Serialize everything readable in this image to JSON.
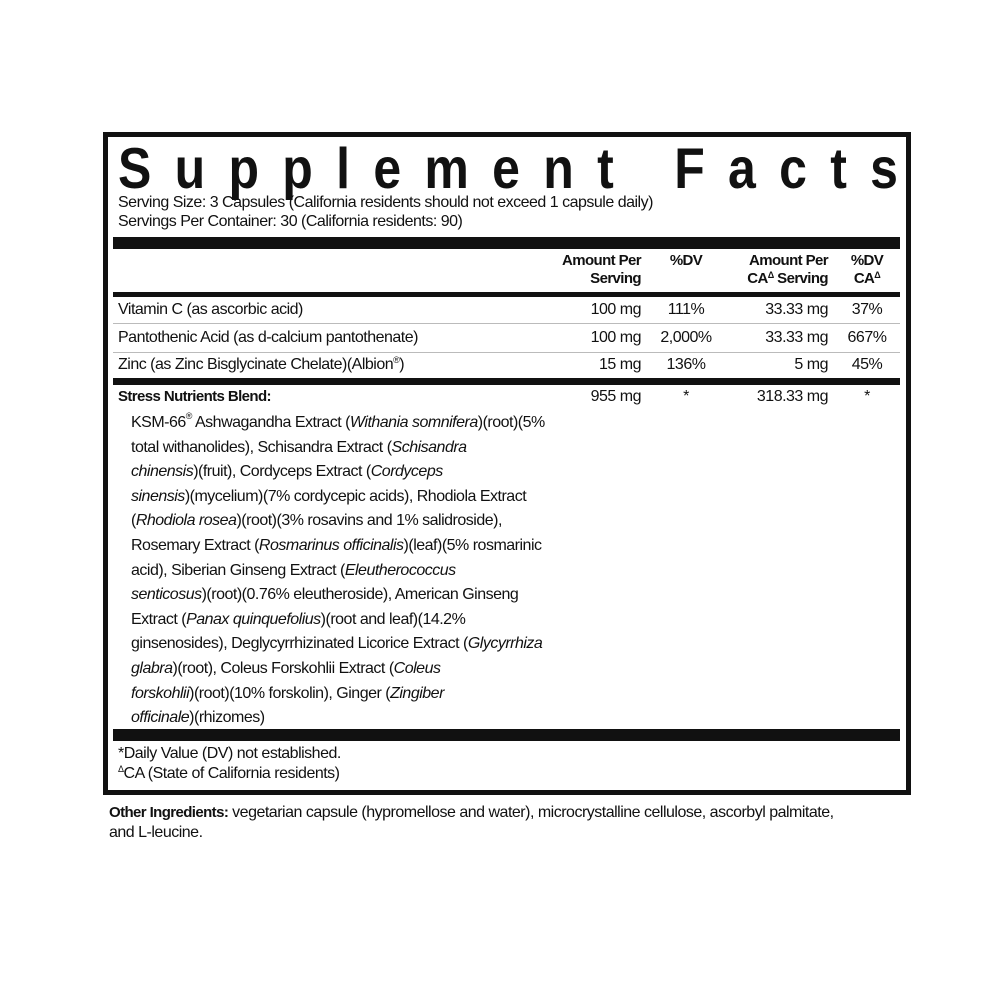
{
  "title": "Supplement Facts",
  "serving_size": "Serving Size: 3 Capsules (California residents should not exceed 1 capsule daily)",
  "servings_per_container": "Servings Per Container: 30 (California residents: 90)",
  "columns": {
    "amount_line1": "Amount Per",
    "amount_line2": "Serving",
    "dv": "%DV",
    "ca_amount_line1": "Amount Per",
    "ca_amount_line2_prefix": "CA",
    "ca_amount_line2_suffix": "Serving",
    "ca_dv_line1": "%DV",
    "ca_dv_line2": "CA",
    "delta": "Δ"
  },
  "rows": [
    {
      "name": "Vitamin C (as ascorbic acid)",
      "amount": "100 mg",
      "dv": "111%",
      "ca_amount": "33.33 mg",
      "ca_dv": "37%"
    },
    {
      "name": "Pantothenic Acid (as d-calcium pantothenate)",
      "amount": "100 mg",
      "dv": "2,000%",
      "ca_amount": "33.33 mg",
      "ca_dv": "667%"
    },
    {
      "name": "Zinc (as Zinc Bisglycinate Chelate)(Albion",
      "reg": "®",
      "name_end": ")",
      "amount": "15 mg",
      "dv": "136%",
      "ca_amount": "5 mg",
      "ca_dv": "45%"
    }
  ],
  "blend": {
    "name": "Stress Nutrients Blend:",
    "amount": "955 mg",
    "dv": "*",
    "ca_amount": "318.33 mg",
    "ca_dv": "*",
    "lines": [
      [
        {
          "t": "KSM-66"
        },
        {
          "t": "®",
          "sup": true
        },
        {
          "t": " Ashwagandha Extract ("
        },
        {
          "t": "Withania somnifera",
          "i": true
        },
        {
          "t": ")(root)(5%"
        }
      ],
      [
        {
          "t": "total withanolides), Schisandra Extract ("
        },
        {
          "t": "Schisandra",
          "i": true
        }
      ],
      [
        {
          "t": "chinensis",
          "i": true
        },
        {
          "t": ")(fruit), Cordyceps Extract ("
        },
        {
          "t": "Cordyceps",
          "i": true
        }
      ],
      [
        {
          "t": "sinensis",
          "i": true
        },
        {
          "t": ")(mycelium)(7% cordycepic acids), Rhodiola Extract"
        }
      ],
      [
        {
          "t": "("
        },
        {
          "t": "Rhodiola rosea",
          "i": true
        },
        {
          "t": ")(root)(3% rosavins and 1% salidroside),"
        }
      ],
      [
        {
          "t": "Rosemary Extract ("
        },
        {
          "t": "Rosmarinus officinalis",
          "i": true
        },
        {
          "t": ")(leaf)(5% rosmarinic"
        }
      ],
      [
        {
          "t": "acid), Siberian Ginseng Extract ("
        },
        {
          "t": "Eleutherococcus",
          "i": true
        }
      ],
      [
        {
          "t": "senticosus",
          "i": true
        },
        {
          "t": ")(root)(0.76% eleutheroside), American Ginseng"
        }
      ],
      [
        {
          "t": "Extract ("
        },
        {
          "t": "Panax quinquefolius",
          "i": true
        },
        {
          "t": ")(root and leaf)(14.2%"
        }
      ],
      [
        {
          "t": "ginsenosides), Deglycyrrhizinated Licorice Extract ("
        },
        {
          "t": "Glycyrrhiza",
          "i": true
        }
      ],
      [
        {
          "t": "glabra",
          "i": true
        },
        {
          "t": ")(root), Coleus Forskohlii Extract ("
        },
        {
          "t": "Coleus",
          "i": true
        }
      ],
      [
        {
          "t": "forskohlii",
          "i": true
        },
        {
          "t": ")(root)(10% forskolin), Ginger ("
        },
        {
          "t": "Zingiber",
          "i": true
        }
      ],
      [
        {
          "t": "officinale",
          "i": true
        },
        {
          "t": ")(rhizomes)"
        }
      ]
    ]
  },
  "footnotes": {
    "dv": "*Daily Value (DV) not established.",
    "ca_symbol": "Δ",
    "ca": "CA (State of California residents)"
  },
  "other_ingredients": {
    "label": "Other Ingredients:",
    "line1": " vegetarian capsule (hypromellose and water), microcrystalline cellulose, ascorbyl palmitate,",
    "line2": "and L-leucine."
  }
}
